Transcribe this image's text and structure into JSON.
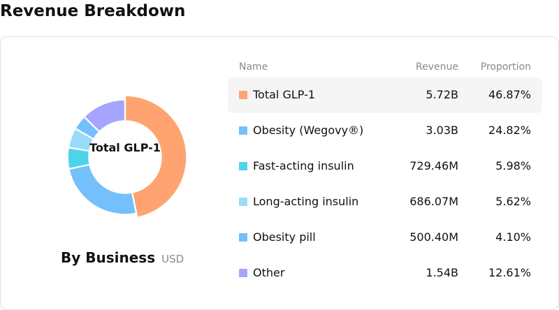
{
  "header": {
    "title": "Revenue Breakdown"
  },
  "donut": {
    "center_label": "Total GLP-1"
  },
  "footer": {
    "title": "By Business",
    "unit": "USD"
  },
  "table": {
    "columns": {
      "name": "Name",
      "revenue": "Revenue",
      "proportion": "Proportion"
    },
    "rows": [
      {
        "name": "Total GLP-1",
        "revenue": "5.72B",
        "proportion": "46.87%",
        "color": "#FFA470",
        "highlighted": true
      },
      {
        "name": "Obesity (Wegovy®)",
        "revenue": "3.03B",
        "proportion": "24.82%",
        "color": "#74C0FC",
        "highlighted": false
      },
      {
        "name": "Fast-acting insulin",
        "revenue": "729.46M",
        "proportion": "5.98%",
        "color": "#4DD4E8",
        "highlighted": false
      },
      {
        "name": "Long-acting insulin",
        "revenue": "686.07M",
        "proportion": "5.62%",
        "color": "#99DBF8",
        "highlighted": false
      },
      {
        "name": "Obesity pill",
        "revenue": "500.40M",
        "proportion": "4.10%",
        "color": "#74C0FC",
        "highlighted": false
      },
      {
        "name": "Other",
        "revenue": "1.54B",
        "proportion": "12.61%",
        "color": "#A5A4FF",
        "highlighted": false
      }
    ]
  },
  "chart_data": {
    "type": "pie",
    "categories": [
      "Total GLP-1",
      "Obesity (Wegovy®)",
      "Fast-acting insulin",
      "Long-acting insulin",
      "Obesity pill",
      "Other"
    ],
    "values": [
      46.87,
      24.82,
      5.98,
      5.62,
      4.1,
      12.61
    ],
    "colors": [
      "#FFA470",
      "#74C0FC",
      "#4DD4E8",
      "#99DBF8",
      "#74C0FC",
      "#A5A4FF"
    ],
    "title": "By Business",
    "unit": "USD"
  }
}
